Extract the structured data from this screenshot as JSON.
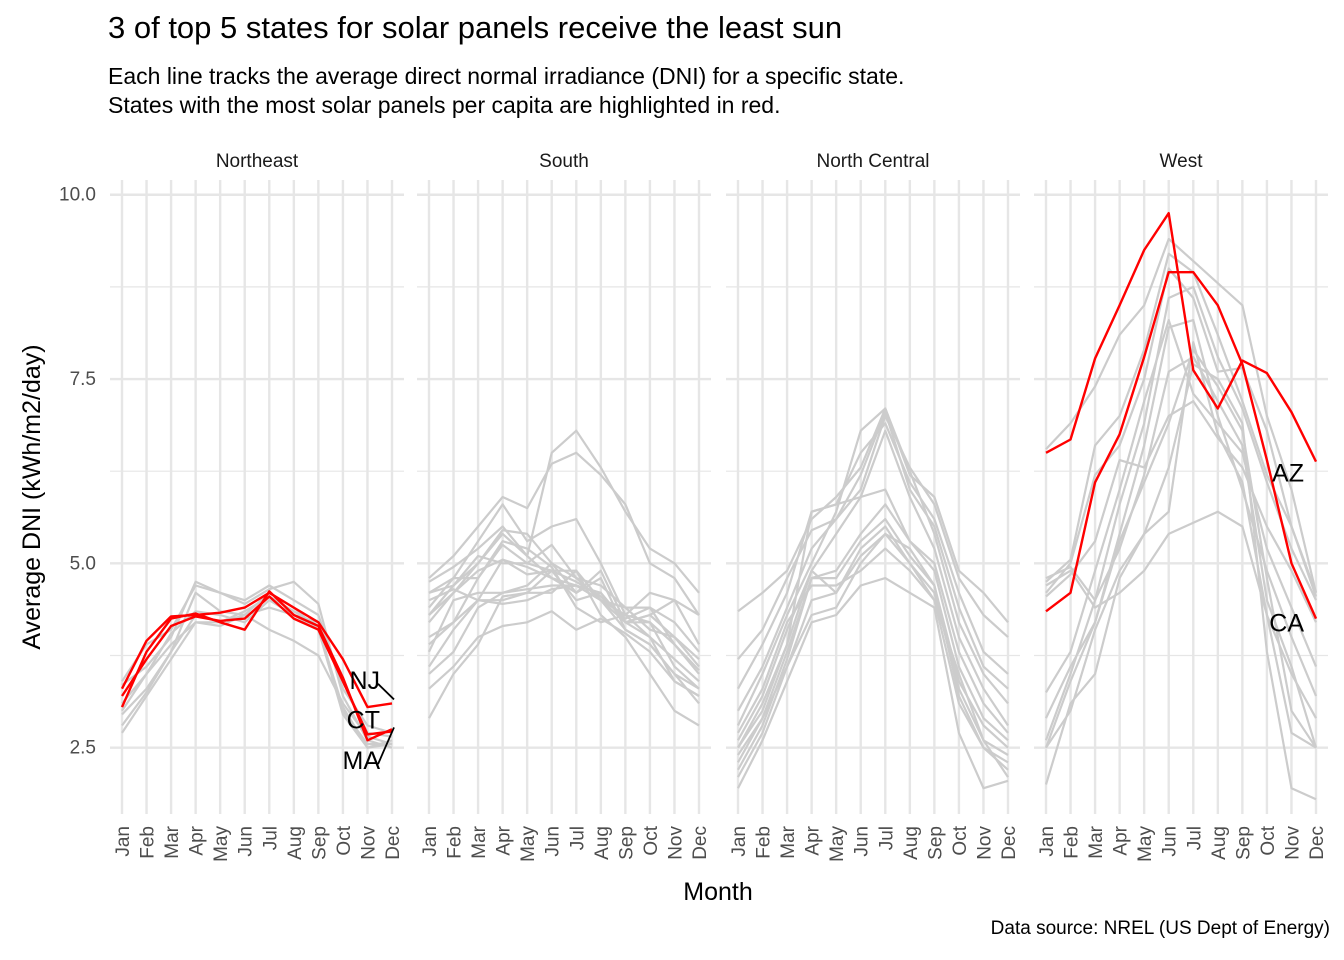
{
  "title": "3 of top 5 states for solar panels receive the least sun",
  "subtitle_line1": "Each line tracks the average direct normal irradiance (DNI) for a specific state.",
  "subtitle_line2": "States with the most solar panels per capita are highlighted in red.",
  "caption": "Data source: NREL (US Dept of Energy)",
  "colors": {
    "highlight": "#ff0000",
    "other": "#cccccc",
    "grid": "#e6e6e6",
    "label_leader": "#000000"
  },
  "chart_data": {
    "type": "line",
    "xlabel": "Month",
    "ylabel": "Average DNI (kWh/m2/day)",
    "x": [
      "Jan",
      "Feb",
      "Mar",
      "Apr",
      "May",
      "Jun",
      "Jul",
      "Aug",
      "Sep",
      "Oct",
      "Nov",
      "Dec"
    ],
    "ylim": [
      1.6,
      10.2
    ],
    "y_ticks": [
      2.5,
      5.0,
      7.5,
      10.0
    ],
    "y_tick_labels": [
      "2.5",
      "5.0",
      "7.5",
      "10.0"
    ],
    "grid": true,
    "legend": "none",
    "panels": [
      {
        "name": "Northeast",
        "highlighted": [
          {
            "label": "NJ",
            "values": [
              3.3,
              3.95,
              4.28,
              4.3,
              4.33,
              4.4,
              4.6,
              4.4,
              4.2,
              3.7,
              3.05,
              3.1
            ]
          },
          {
            "label": "CT",
            "values": [
              3.05,
              3.8,
              4.25,
              4.32,
              4.2,
              4.1,
              4.62,
              4.3,
              4.15,
              3.45,
              2.6,
              2.75
            ]
          },
          {
            "label": "MA",
            "values": [
              3.2,
              3.7,
              4.15,
              4.28,
              4.22,
              4.25,
              4.55,
              4.25,
              4.1,
              3.4,
              2.68,
              2.72
            ]
          }
        ],
        "other": [
          [
            3.4,
            3.9,
            4.1,
            4.7,
            4.6,
            4.5,
            4.7,
            4.5,
            4.3,
            3.3,
            2.8,
            2.7
          ],
          [
            3.35,
            3.6,
            4.0,
            4.75,
            4.6,
            4.45,
            4.65,
            4.75,
            4.45,
            3.2,
            2.6,
            2.5
          ],
          [
            2.95,
            3.3,
            3.8,
            4.3,
            4.2,
            4.35,
            4.55,
            4.35,
            4.15,
            3.0,
            2.55,
            2.55
          ],
          [
            2.7,
            3.2,
            3.7,
            4.2,
            4.15,
            4.3,
            4.4,
            4.3,
            4.1,
            2.95,
            2.5,
            2.55
          ],
          [
            2.8,
            3.25,
            3.8,
            4.6,
            4.35,
            4.3,
            4.6,
            4.4,
            4.1,
            3.05,
            2.5,
            2.6
          ],
          [
            3.1,
            3.5,
            3.9,
            4.2,
            4.2,
            4.3,
            4.1,
            3.95,
            3.75,
            3.1,
            2.65,
            2.55
          ],
          [
            3.0,
            3.5,
            4.05,
            4.35,
            4.3,
            4.2,
            4.5,
            4.3,
            4.2,
            3.4,
            2.7,
            2.65
          ]
        ],
        "label_positions": {
          "NJ": 3.42,
          "CT": 2.88,
          "MA": 2.33
        }
      },
      {
        "name": "South",
        "highlighted": [],
        "other": [
          [
            4.75,
            4.95,
            5.2,
            5.5,
            5.1,
            6.5,
            6.8,
            6.3,
            5.7,
            5.2,
            5.0,
            4.6
          ],
          [
            4.8,
            5.1,
            5.5,
            5.9,
            5.75,
            6.35,
            6.5,
            6.2,
            5.8,
            5.0,
            4.8,
            4.3
          ],
          [
            4.4,
            4.8,
            5.3,
            5.8,
            5.3,
            5.5,
            5.6,
            5.0,
            4.3,
            4.6,
            4.5,
            4.3
          ],
          [
            4.2,
            4.6,
            5.0,
            5.45,
            5.4,
            5.0,
            4.8,
            4.7,
            4.4,
            4.4,
            4.2,
            3.8
          ],
          [
            4.3,
            4.7,
            5.0,
            5.4,
            5.1,
            4.8,
            4.6,
            4.9,
            4.2,
            4.3,
            4.0,
            3.6
          ],
          [
            4.6,
            4.7,
            5.1,
            5.0,
            5.0,
            4.9,
            4.9,
            4.5,
            4.3,
            4.2,
            3.9,
            3.5
          ],
          [
            4.0,
            4.2,
            4.5,
            5.05,
            4.95,
            4.8,
            4.7,
            4.6,
            4.2,
            4.2,
            3.6,
            3.3
          ],
          [
            3.8,
            4.5,
            4.6,
            4.6,
            4.7,
            5.0,
            4.6,
            4.8,
            4.1,
            3.9,
            3.5,
            3.1
          ],
          [
            3.6,
            4.1,
            4.5,
            4.5,
            4.6,
            4.9,
            4.5,
            4.6,
            4.2,
            4.0,
            3.4,
            3.2
          ],
          [
            3.5,
            3.8,
            4.4,
            4.6,
            4.65,
            4.7,
            4.7,
            4.5,
            4.1,
            3.9,
            3.5,
            3.3
          ],
          [
            3.3,
            3.6,
            4.0,
            4.15,
            4.2,
            4.35,
            4.1,
            4.25,
            4.05,
            3.8,
            3.4,
            3.2
          ],
          [
            2.9,
            3.5,
            3.9,
            4.55,
            4.6,
            4.6,
            4.9,
            4.3,
            4.0,
            3.5,
            3.0,
            2.8
          ],
          [
            4.5,
            4.65,
            4.5,
            4.45,
            4.5,
            4.65,
            4.7,
            4.5,
            4.2,
            4.3,
            4.5,
            3.9
          ],
          [
            4.3,
            4.6,
            4.9,
            5.05,
            4.85,
            4.9,
            4.75,
            4.55,
            4.25,
            4.4,
            3.9,
            3.55
          ],
          [
            3.9,
            4.2,
            4.8,
            5.3,
            5.2,
            4.95,
            4.4,
            4.2,
            4.3,
            4.0,
            3.7,
            3.4
          ],
          [
            4.6,
            4.8,
            4.8,
            5.25,
            5.0,
            5.25,
            4.8,
            4.5,
            4.4,
            4.1,
            4.0,
            3.7
          ]
        ],
        "label_positions": {}
      },
      {
        "name": "North Central",
        "highlighted": [],
        "other": [
          [
            4.35,
            4.6,
            4.9,
            5.6,
            5.9,
            6.3,
            7.1,
            6.2,
            5.9,
            4.9,
            4.6,
            4.2
          ],
          [
            3.7,
            4.1,
            4.8,
            5.45,
            5.6,
            6.0,
            7.0,
            6.3,
            5.8,
            4.8,
            4.3,
            4.0
          ],
          [
            3.3,
            3.9,
            4.6,
            5.7,
            5.8,
            6.5,
            6.9,
            6.1,
            5.6,
            4.6,
            3.8,
            3.5
          ],
          [
            3.0,
            3.6,
            4.4,
            5.2,
            5.6,
            6.2,
            7.05,
            6.0,
            5.5,
            4.4,
            3.6,
            3.3
          ],
          [
            2.8,
            3.5,
            4.3,
            5.0,
            5.7,
            6.8,
            7.1,
            6.25,
            5.4,
            4.2,
            3.5,
            3.1
          ],
          [
            2.6,
            3.2,
            4.1,
            4.9,
            5.4,
            5.9,
            6.8,
            5.9,
            5.2,
            4.0,
            3.3,
            2.8
          ],
          [
            2.5,
            3.0,
            3.9,
            5.7,
            5.8,
            5.9,
            6.0,
            5.3,
            5.0,
            3.8,
            3.1,
            2.7
          ],
          [
            2.4,
            2.9,
            3.8,
            4.8,
            4.9,
            5.4,
            5.8,
            5.3,
            4.9,
            3.6,
            2.9,
            2.6
          ],
          [
            2.2,
            2.8,
            3.7,
            4.8,
            4.8,
            5.3,
            5.6,
            5.1,
            4.7,
            3.4,
            2.8,
            2.5
          ],
          [
            2.3,
            2.9,
            3.6,
            4.5,
            4.6,
            5.2,
            5.5,
            5.0,
            4.6,
            3.3,
            2.6,
            2.4
          ],
          [
            2.1,
            2.7,
            3.6,
            4.3,
            4.4,
            5.0,
            5.4,
            5.0,
            4.5,
            3.1,
            2.5,
            2.3
          ],
          [
            1.95,
            2.6,
            3.4,
            4.2,
            4.3,
            4.7,
            4.8,
            4.6,
            4.4,
            2.7,
            1.95,
            2.05
          ],
          [
            2.5,
            3.1,
            3.9,
            4.9,
            4.6,
            5.1,
            5.4,
            5.2,
            4.7,
            3.2,
            2.5,
            2.2
          ],
          [
            2.7,
            3.3,
            4.2,
            4.7,
            4.7,
            4.9,
            5.2,
            4.9,
            4.5,
            3.5,
            2.6,
            2.1
          ]
        ],
        "label_positions": {}
      },
      {
        "name": "West",
        "highlighted": [
          {
            "label": "AZ",
            "values": [
              6.5,
              6.68,
              7.78,
              8.5,
              9.25,
              9.75,
              7.62,
              7.1,
              7.75,
              7.58,
              7.05,
              6.38
            ]
          },
          {
            "label": "CA",
            "values": [
              4.35,
              4.6,
              6.1,
              6.75,
              7.8,
              8.95,
              8.95,
              8.5,
              7.7,
              6.4,
              5.0,
              4.25
            ]
          }
        ],
        "other": [
          [
            6.55,
            6.9,
            7.4,
            8.1,
            8.5,
            9.4,
            9.1,
            8.8,
            8.5,
            7.0,
            6.0,
            4.6
          ],
          [
            4.75,
            5.05,
            6.6,
            7.0,
            7.9,
            9.2,
            8.95,
            8.1,
            7.2,
            6.2,
            5.5,
            4.6
          ],
          [
            4.6,
            5.0,
            6.2,
            6.6,
            7.5,
            9.0,
            8.6,
            7.6,
            7.65,
            6.8,
            5.5,
            4.55
          ],
          [
            4.8,
            4.95,
            4.5,
            5.8,
            6.9,
            8.6,
            8.75,
            7.8,
            7.1,
            6.1,
            5.2,
            4.5
          ],
          [
            3.25,
            3.8,
            4.9,
            6.0,
            7.2,
            8.3,
            7.3,
            6.9,
            6.5,
            5.2,
            4.4,
            3.6
          ],
          [
            2.9,
            3.6,
            4.2,
            5.4,
            6.6,
            8.2,
            8.3,
            7.0,
            6.0,
            4.9,
            4.0,
            3.2
          ],
          [
            2.6,
            3.5,
            4.5,
            5.2,
            6.2,
            7.6,
            7.8,
            7.2,
            6.6,
            4.5,
            3.6,
            2.5
          ],
          [
            2.5,
            3.4,
            4.2,
            5.3,
            6.1,
            6.9,
            7.9,
            7.4,
            6.8,
            4.8,
            3.0,
            2.5
          ],
          [
            2.0,
            3.1,
            3.5,
            4.8,
            5.4,
            6.3,
            7.7,
            7.5,
            6.9,
            3.8,
            1.95,
            1.8
          ],
          [
            2.5,
            3.0,
            4.1,
            4.9,
            5.4,
            5.7,
            8.0,
            6.75,
            6.1,
            4.3,
            2.7,
            2.5
          ],
          [
            4.7,
            4.9,
            4.4,
            4.6,
            4.9,
            5.4,
            5.55,
            5.7,
            5.5,
            4.3,
            3.5,
            2.9
          ],
          [
            4.55,
            4.85,
            5.3,
            6.4,
            6.3,
            7.0,
            7.2,
            6.7,
            6.3,
            5.5,
            4.9,
            4.2
          ]
        ],
        "label_positions": {
          "AZ": 6.23,
          "CA": 4.2
        }
      }
    ]
  }
}
